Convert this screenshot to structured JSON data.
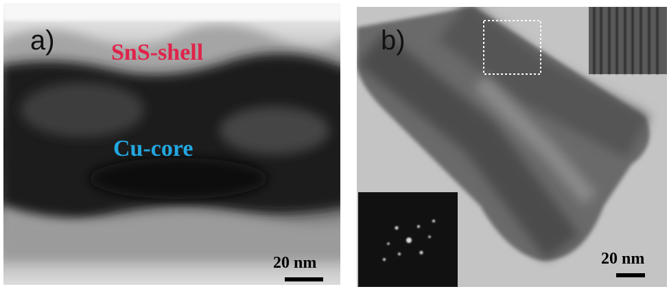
{
  "panels": [
    {
      "label": "a)",
      "annotations": [
        "SnS-shell",
        "Cu-core"
      ],
      "scale_bar": "20 nm"
    },
    {
      "label": "b)",
      "scale_bar": "20 nm"
    }
  ]
}
